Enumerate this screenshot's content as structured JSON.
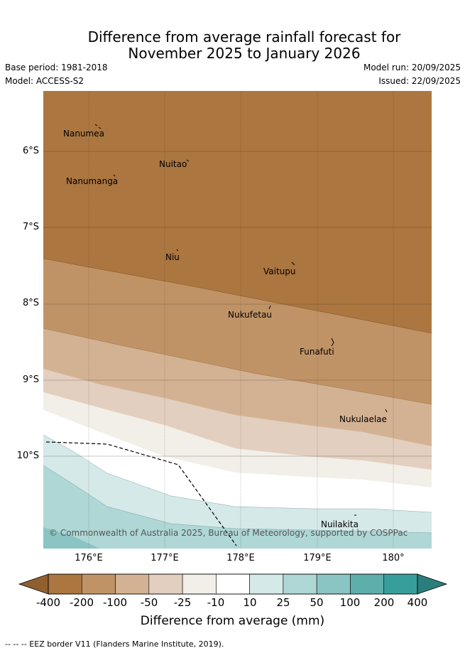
{
  "title_line1": "Difference from average rainfall forecast for",
  "title_line2": "November 2025 to January 2026",
  "base_period": "Base period: 1981-2018",
  "model": "Model: ACCESS-S2",
  "model_run": "Model run: 20/09/2025",
  "issued": "Issued: 22/09/2025",
  "lat_labels": [
    "6°S",
    "7°S",
    "8°S",
    "9°S",
    "10°S"
  ],
  "lon_labels": [
    "176°E",
    "177°E",
    "178°E",
    "179°E",
    "180°"
  ],
  "places": [
    "Nanumea",
    "Nuitao",
    "Nanumanga",
    "Niu",
    "Vaitupu",
    "Nukufetau",
    "Funafuti",
    "Nukulaelae",
    "Nuilakita"
  ],
  "copyright": "© Commonwealth of Australia 2025, Bureau of Meteorology, supported by COSPPac",
  "colorbar": {
    "ticks": [
      "-400",
      "-200",
      "-100",
      "-50",
      "-25",
      "-10",
      "10",
      "25",
      "50",
      "100",
      "200",
      "400"
    ],
    "colors": [
      "#ab7640",
      "#c09366",
      "#d3b293",
      "#e3cfbf",
      "#f2efe9",
      "#ffffff",
      "#d4e9e8",
      "#aed7d5",
      "#8ac4c3",
      "#5eaeac",
      "#389e9c"
    ],
    "low_extend_color": "#905f2f",
    "high_extend_color": "#2a7f7d",
    "title": "Difference from average (mm)"
  },
  "footnote": "--  --  -- EEZ border V11 (Flanders Marine Institute, 2019)."
}
